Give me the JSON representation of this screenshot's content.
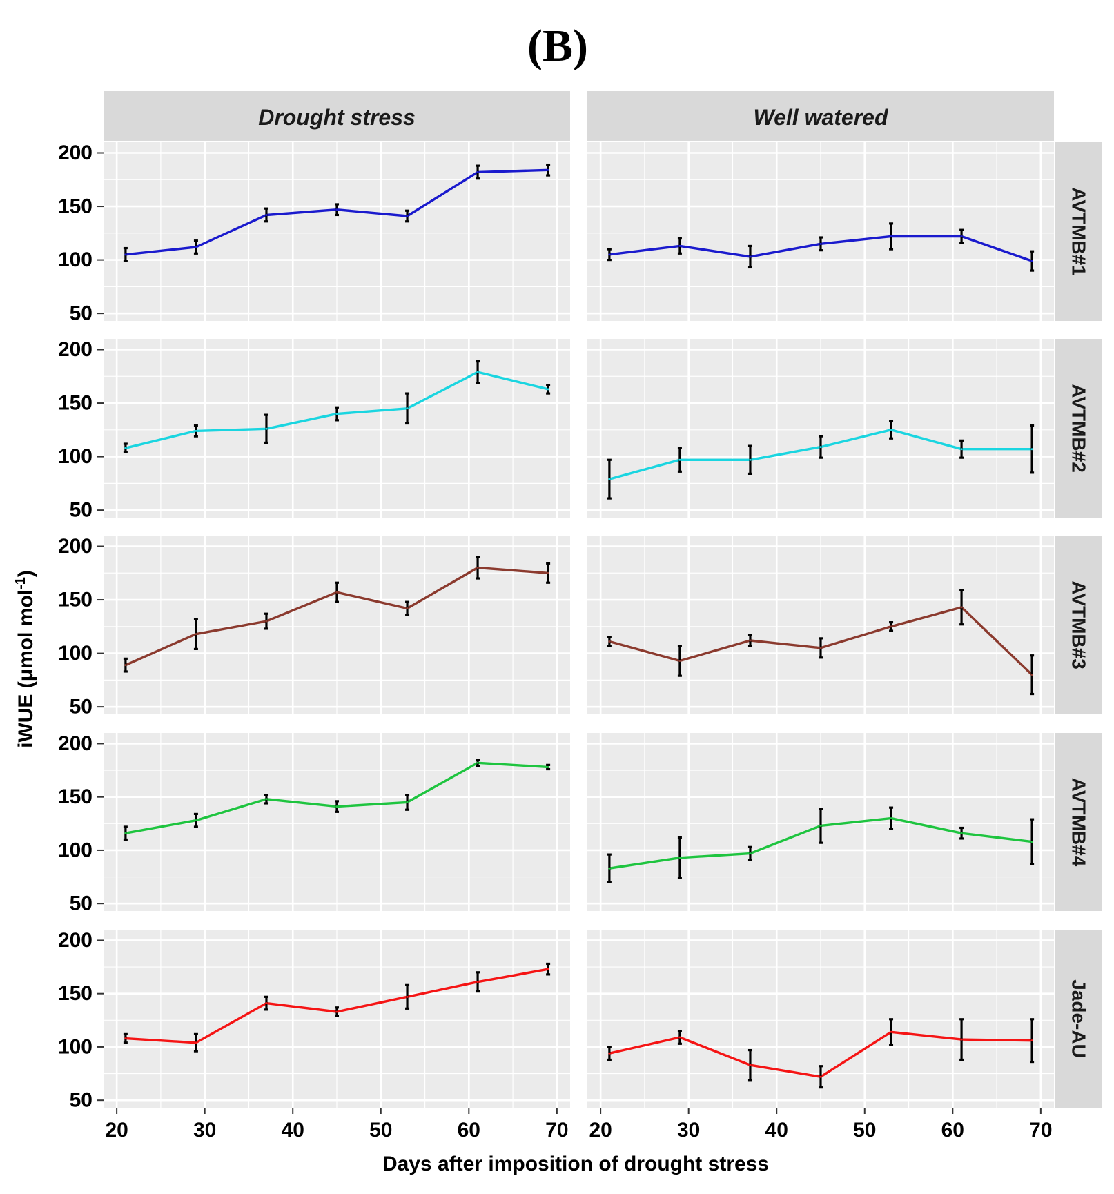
{
  "chart_data": {
    "type": "line",
    "panel_label": "(B)",
    "xlabel": "Days after imposition of drought stress",
    "ylabel_main": "iWUE (μmol mol",
    "ylabel_sup": "-1",
    "ylabel_tail": ")",
    "x": [
      21,
      29,
      37,
      45,
      53,
      61,
      69
    ],
    "xlim": [
      18.5,
      71.5
    ],
    "ylim": [
      43,
      210
    ],
    "x_ticks": [
      20,
      30,
      40,
      50,
      60,
      70
    ],
    "y_ticks": [
      50,
      100,
      150,
      200
    ],
    "x_tick_labels": [
      "20",
      "30",
      "40",
      "50",
      "60",
      "70"
    ],
    "y_tick_labels": [
      "50",
      "100",
      "150",
      "200"
    ],
    "columns": [
      "Drought stress",
      "Well watered"
    ],
    "rows": [
      {
        "name": "AVTMB#1",
        "color": "#1a1acd",
        "series": [
          {
            "condition": "Drought stress",
            "values": [
              105,
              112,
              142,
              147,
              141,
              182,
              184
            ],
            "errors": [
              6,
              6,
              6,
              5,
              5,
              6,
              5
            ]
          },
          {
            "condition": "Well watered",
            "values": [
              105,
              113,
              103,
              115,
              122,
              122,
              99
            ],
            "errors": [
              5,
              7,
              10,
              6,
              12,
              6,
              9
            ]
          }
        ]
      },
      {
        "name": "AVTMB#2",
        "color": "#1ad5e0",
        "series": [
          {
            "condition": "Drought stress",
            "values": [
              108,
              124,
              126,
              140,
              145,
              179,
              163
            ],
            "errors": [
              4,
              5,
              13,
              6,
              14,
              10,
              4
            ]
          },
          {
            "condition": "Well watered",
            "values": [
              79,
              97,
              97,
              109,
              125,
              107,
              107
            ],
            "errors": [
              18,
              11,
              13,
              10,
              8,
              8,
              22
            ]
          }
        ]
      },
      {
        "name": "AVTMB#3",
        "color": "#8b3a2e",
        "series": [
          {
            "condition": "Drought stress",
            "values": [
              89,
              118,
              130,
              157,
              142,
              180,
              175
            ],
            "errors": [
              6,
              14,
              7,
              9,
              6,
              10,
              9
            ]
          },
          {
            "condition": "Well watered",
            "values": [
              111,
              93,
              112,
              105,
              125,
              143,
              80
            ],
            "errors": [
              4,
              14,
              5,
              9,
              4,
              16,
              18
            ]
          }
        ]
      },
      {
        "name": "AVTMB#4",
        "color": "#1ec43f",
        "series": [
          {
            "condition": "Drought stress",
            "values": [
              116,
              128,
              148,
              141,
              145,
              182,
              178
            ],
            "errors": [
              6,
              6,
              4,
              5,
              7,
              3,
              2
            ]
          },
          {
            "condition": "Well watered",
            "values": [
              83,
              93,
              97,
              123,
              130,
              116,
              108
            ],
            "errors": [
              13,
              19,
              6,
              16,
              10,
              5,
              21
            ]
          }
        ]
      },
      {
        "name": "Jade-AU",
        "color": "#f51414",
        "series": [
          {
            "condition": "Drought stress",
            "values": [
              108,
              104,
              141,
              133,
              147,
              161,
              173
            ],
            "errors": [
              4,
              8,
              6,
              4,
              11,
              9,
              5
            ]
          },
          {
            "condition": "Well watered",
            "values": [
              94,
              109,
              83,
              72,
              114,
              107,
              106
            ],
            "errors": [
              6,
              6,
              14,
              10,
              12,
              19,
              20
            ]
          }
        ]
      }
    ]
  }
}
